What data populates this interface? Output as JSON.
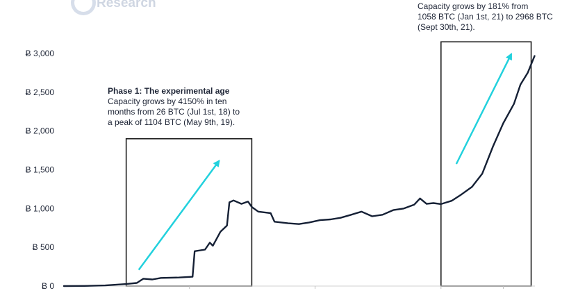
{
  "brand": {
    "name": "Research",
    "logo_icon": "brand-logo-icon"
  },
  "annotations": {
    "phase1": {
      "head": "Phase 1: The experimental age",
      "lines": [
        "Capacity grows by 4150% in ten",
        "months from 26 BTC (Jul 1st, 18) to",
        "a peak of 1104 BTC (May 9th, 19)."
      ]
    },
    "phase3": {
      "lines": [
        "Capacity grows by 181% from",
        "1058 BTC (Jan 1st, 21) to 2968 BTC",
        "(Sept 30th, 21)."
      ]
    }
  },
  "colors": {
    "line": "#152035",
    "arrow": "#22d1dd",
    "box": "#1b1b1b",
    "text": "#1e2536"
  },
  "chart_data": {
    "type": "line",
    "title": "",
    "xlabel": "",
    "ylabel": "",
    "ylim": [
      0,
      3000
    ],
    "xlim": [
      "2018-01-01",
      "2021-10-01"
    ],
    "y_ticks": [
      0,
      500,
      1000,
      1500,
      2000,
      2500,
      3000
    ],
    "y_tick_labels": [
      "Ƀ 0",
      "Ƀ 500",
      "Ƀ 1,000",
      "Ƀ 1,500",
      "Ƀ 2,000",
      "Ƀ 2,500",
      "Ƀ 3,000"
    ],
    "x_ticks": [
      "2019-01-01",
      "2020-01-01",
      "2021-01-01",
      "2021-07-01"
    ],
    "grid": false,
    "legend": "none",
    "series": [
      {
        "values": [
          [
            "2018-01-01",
            0
          ],
          [
            "2018-03-01",
            2
          ],
          [
            "2018-05-01",
            8
          ],
          [
            "2018-07-01",
            26
          ],
          [
            "2018-08-01",
            40
          ],
          [
            "2018-08-20",
            95
          ],
          [
            "2018-09-15",
            85
          ],
          [
            "2018-10-10",
            105
          ],
          [
            "2018-12-01",
            110
          ],
          [
            "2019-01-10",
            120
          ],
          [
            "2019-01-16",
            450
          ],
          [
            "2019-02-15",
            470
          ],
          [
            "2019-03-01",
            560
          ],
          [
            "2019-03-10",
            520
          ],
          [
            "2019-04-01",
            700
          ],
          [
            "2019-04-20",
            780
          ],
          [
            "2019-04-27",
            1080
          ],
          [
            "2019-05-09",
            1104
          ],
          [
            "2019-06-01",
            1060
          ],
          [
            "2019-06-20",
            1090
          ],
          [
            "2019-07-01",
            1020
          ],
          [
            "2019-07-20",
            960
          ],
          [
            "2019-08-25",
            940
          ],
          [
            "2019-09-05",
            830
          ],
          [
            "2019-10-15",
            810
          ],
          [
            "2019-11-15",
            800
          ],
          [
            "2019-12-15",
            820
          ],
          [
            "2020-01-15",
            850
          ],
          [
            "2020-02-15",
            860
          ],
          [
            "2020-03-15",
            880
          ],
          [
            "2020-04-15",
            920
          ],
          [
            "2020-05-15",
            960
          ],
          [
            "2020-06-15",
            900
          ],
          [
            "2020-07-15",
            920
          ],
          [
            "2020-08-15",
            980
          ],
          [
            "2020-09-15",
            1000
          ],
          [
            "2020-10-15",
            1050
          ],
          [
            "2020-11-01",
            1130
          ],
          [
            "2020-11-20",
            1060
          ],
          [
            "2020-12-10",
            1070
          ],
          [
            "2021-01-01",
            1058
          ],
          [
            "2021-02-01",
            1100
          ],
          [
            "2021-03-01",
            1180
          ],
          [
            "2021-04-01",
            1280
          ],
          [
            "2021-05-01",
            1450
          ],
          [
            "2021-06-01",
            1800
          ],
          [
            "2021-07-01",
            2100
          ],
          [
            "2021-08-01",
            2350
          ],
          [
            "2021-08-20",
            2600
          ],
          [
            "2021-09-10",
            2750
          ],
          [
            "2021-09-30",
            2968
          ]
        ]
      }
    ],
    "highlights": [
      {
        "start": "2018-07-01",
        "end": "2019-07-01",
        "ymax": 1900,
        "trend": "up"
      },
      {
        "start": "2021-01-01",
        "end": "2021-09-20",
        "ymax": 3150,
        "trend": "up"
      }
    ]
  }
}
